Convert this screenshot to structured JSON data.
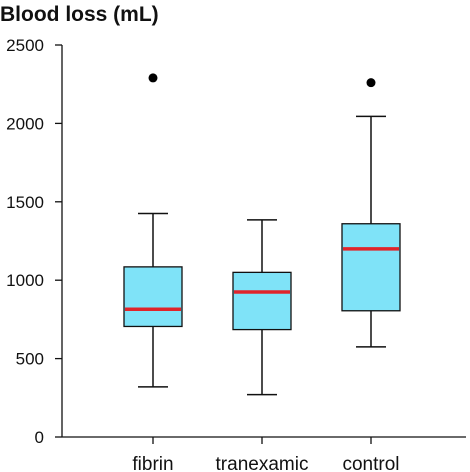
{
  "chart_data": {
    "type": "box",
    "title": "Blood loss (mL)",
    "xlabel": "",
    "ylabel": "",
    "ylim": [
      0,
      2500
    ],
    "yticks": [
      0,
      500,
      1000,
      1500,
      2000,
      2500
    ],
    "categories": [
      "fibrin",
      "tranexamic",
      "control"
    ],
    "boxes": [
      {
        "category": "fibrin",
        "whisker_low": 320,
        "q1": 705,
        "median": 815,
        "q3": 1085,
        "whisker_high": 1425,
        "outliers": [
          2290
        ]
      },
      {
        "category": "tranexamic",
        "whisker_low": 270,
        "q1": 685,
        "median": 925,
        "q3": 1050,
        "whisker_high": 1385,
        "outliers": []
      },
      {
        "category": "control",
        "whisker_low": 575,
        "q1": 805,
        "median": 1200,
        "q3": 1360,
        "whisker_high": 2045,
        "outliers": [
          2260
        ]
      }
    ],
    "colors": {
      "box_fill": "#7fe3f8",
      "median": "#e0242a",
      "stroke": "#111111",
      "outlier": "#000000"
    }
  }
}
